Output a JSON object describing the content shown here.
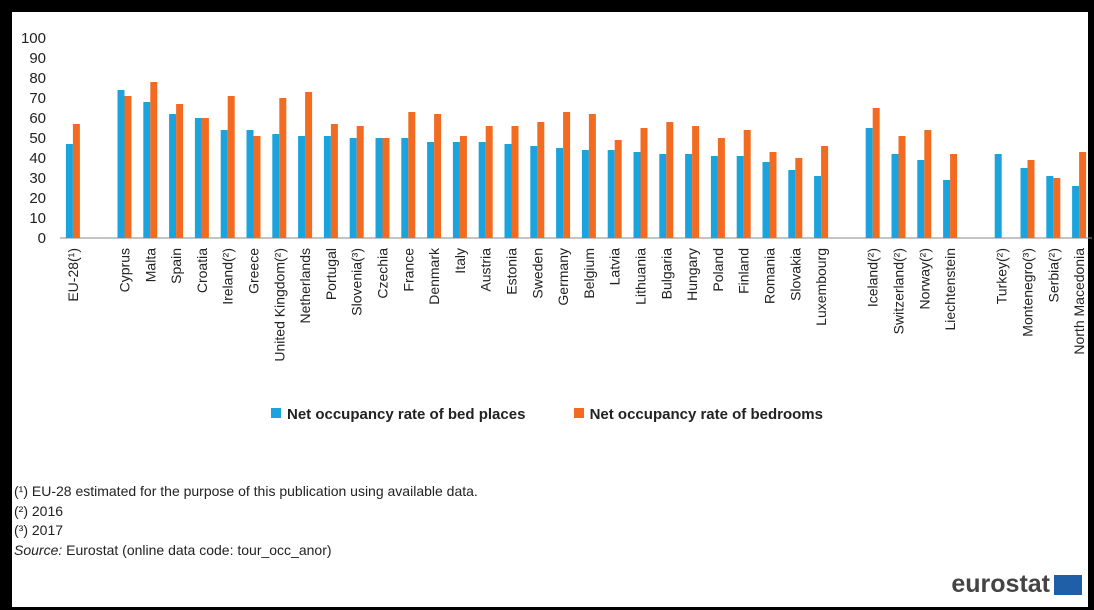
{
  "chart_data": {
    "type": "bar",
    "title": "",
    "xlabel": "",
    "ylabel": "",
    "ylim": [
      0,
      100
    ],
    "yticks": [
      0,
      10,
      20,
      30,
      40,
      50,
      60,
      70,
      80,
      90,
      100
    ],
    "grid": false,
    "legend_position": "bottom",
    "categories": [
      "EU-28(¹)",
      "",
      "Cyprus",
      "Malta",
      "Spain",
      "Croatia",
      "Ireland(²)",
      "Greece",
      "United Kingdom(²)",
      "Netherlands",
      "Portugal",
      "Slovenia(³)",
      "Czechia",
      "France",
      "Denmark",
      "Italy",
      "Austria",
      "Estonia",
      "Sweden",
      "Germany",
      "Belgium",
      "Latvia",
      "Lithuania",
      "Bulgaria",
      "Hungary",
      "Poland",
      "Finland",
      "Romania",
      "Slovakia",
      "Luxembourg",
      "",
      "Iceland(²)",
      "Switzerland(²)",
      "Norway(²)",
      "Liechtenstein",
      "",
      "Turkey(²)",
      "Montenegro(³)",
      "Serbia(²)",
      "North Macedonia"
    ],
    "series": [
      {
        "name": "Net occupancy rate of bed places",
        "color": "#1aa3dc",
        "values": [
          47,
          null,
          74,
          68,
          62,
          60,
          54,
          54,
          52,
          51,
          51,
          50,
          50,
          50,
          48,
          48,
          48,
          47,
          46,
          45,
          44,
          44,
          43,
          42,
          42,
          41,
          41,
          38,
          34,
          31,
          null,
          55,
          42,
          39,
          29,
          null,
          42,
          35,
          31,
          26
        ]
      },
      {
        "name": "Net occupancy rate of bedrooms",
        "color": "#f26b21",
        "values": [
          57,
          null,
          71,
          78,
          67,
          60,
          71,
          51,
          70,
          73,
          57,
          56,
          50,
          63,
          62,
          51,
          56,
          56,
          58,
          63,
          62,
          49,
          55,
          58,
          56,
          50,
          54,
          43,
          40,
          46,
          null,
          65,
          51,
          54,
          42,
          null,
          null,
          39,
          30,
          43
        ]
      }
    ]
  },
  "notes": {
    "note1": "(¹) EU-28 estimated for the purpose of this publication using available data.",
    "note2": "(²) 2016",
    "note3": "(³) 2017",
    "source_label": "Source:",
    "source_text": " Eurostat (online data code: tour_occ_anor)"
  },
  "logo": {
    "text": "eurostat",
    "flag_color": "#1f5fa8"
  }
}
